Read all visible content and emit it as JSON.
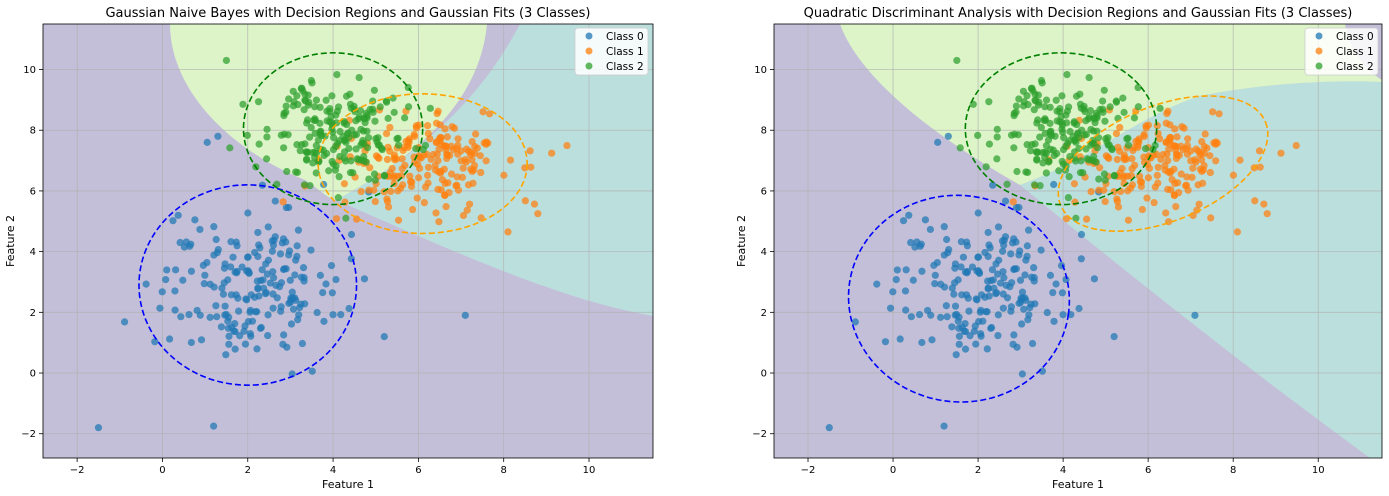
{
  "colors": {
    "class0": "#1f77b4",
    "class1": "#ff7f0e",
    "class2": "#2ca02c",
    "region0": "#c3bfd8",
    "region1": "#bbdfdd",
    "region2": "#dcf4c8",
    "ellipse0": "#0000ff",
    "ellipse1": "#ffa500",
    "ellipse2": "#008000",
    "grid": "#b0b0b0"
  },
  "chart_data": [
    {
      "type": "scatter",
      "title": "Gaussian Naive Bayes with Decision Regions and Gaussian Fits (3 Classes)",
      "xlabel": "Feature 1",
      "ylabel": "Feature 2",
      "xlim": [
        -2.8,
        11.5
      ],
      "ylim": [
        -2.8,
        11.5
      ],
      "xticks": [
        -2,
        0,
        2,
        4,
        6,
        8,
        10
      ],
      "yticks": [
        -2,
        0,
        2,
        4,
        6,
        8,
        10
      ],
      "grid": true,
      "legend_position": "upper-right",
      "legend": [
        "Class 0",
        "Class 1",
        "Class 2"
      ],
      "series": [
        {
          "name": "Class 0",
          "center": [
            2.0,
            2.9
          ],
          "spread": [
            1.05,
            1.2
          ],
          "corr": 0.05,
          "outliers": [
            [
              -1.5,
              -1.8
            ],
            [
              1.2,
              -1.75
            ],
            [
              7.1,
              1.9
            ],
            [
              1.05,
              7.6
            ],
            [
              1.3,
              7.8
            ],
            [
              5.2,
              1.2
            ]
          ]
        },
        {
          "name": "Class 1",
          "center": [
            6.1,
            6.9
          ],
          "spread": [
            1.05,
            0.8
          ],
          "corr": 0.05,
          "outliers": [
            [
              8.8,
              5.25
            ],
            [
              8.1,
              4.65
            ]
          ]
        },
        {
          "name": "Class 2",
          "center": [
            4.0,
            8.05
          ],
          "spread": [
            0.85,
            0.85
          ],
          "corr": 0.0,
          "outliers": [
            [
              1.5,
              10.3
            ],
            [
              4.3,
              5.1
            ]
          ]
        }
      ],
      "gaussian_fits": [
        {
          "class": "Class 0",
          "center": [
            2.0,
            2.9
          ],
          "radii": [
            2.55,
            3.3
          ],
          "angle_deg": 0
        },
        {
          "class": "Class 1",
          "center": [
            6.1,
            6.9
          ],
          "radii": [
            2.45,
            2.3
          ],
          "angle_deg": 0
        },
        {
          "class": "Class 2",
          "center": [
            4.0,
            8.05
          ],
          "radii": [
            2.1,
            2.5
          ],
          "angle_deg": 0
        }
      ]
    },
    {
      "type": "scatter",
      "title": "Quadratic Discriminant Analysis with Decision Regions and Gaussian Fits (3 Classes)",
      "xlabel": "Feature 1",
      "ylabel": "Feature 2",
      "xlim": [
        -2.8,
        11.5
      ],
      "ylim": [
        -2.8,
        11.5
      ],
      "xticks": [
        -2,
        0,
        2,
        4,
        6,
        8,
        10
      ],
      "yticks": [
        -2,
        0,
        2,
        4,
        6,
        8,
        10
      ],
      "grid": true,
      "legend_position": "upper-right",
      "legend": [
        "Class 0",
        "Class 1",
        "Class 2"
      ],
      "series": [
        {
          "name": "Class 0",
          "center": [
            2.0,
            2.9
          ],
          "spread": [
            1.05,
            1.2
          ],
          "corr": 0.05,
          "outliers": [
            [
              -1.5,
              -1.8
            ],
            [
              1.2,
              -1.75
            ],
            [
              7.1,
              1.9
            ],
            [
              1.05,
              7.6
            ],
            [
              1.3,
              7.8
            ],
            [
              5.2,
              1.2
            ]
          ]
        },
        {
          "name": "Class 1",
          "center": [
            6.1,
            6.9
          ],
          "spread": [
            1.05,
            0.8
          ],
          "corr": 0.05,
          "outliers": [
            [
              8.8,
              5.25
            ],
            [
              8.1,
              4.65
            ]
          ]
        },
        {
          "name": "Class 2",
          "center": [
            4.0,
            8.05
          ],
          "spread": [
            0.85,
            0.85
          ],
          "corr": 0.0,
          "outliers": [
            [
              1.5,
              10.3
            ],
            [
              4.3,
              5.1
            ]
          ]
        }
      ],
      "gaussian_fits": [
        {
          "class": "Class 0",
          "center": [
            1.55,
            2.45
          ],
          "radii": [
            2.6,
            3.4
          ],
          "angle_deg": 8
        },
        {
          "class": "Class 1",
          "center": [
            6.35,
            6.9
          ],
          "radii": [
            2.6,
            1.9
          ],
          "angle_deg": -22
        },
        {
          "class": "Class 2",
          "center": [
            3.95,
            8.05
          ],
          "radii": [
            2.25,
            2.5
          ],
          "angle_deg": 0
        }
      ]
    }
  ]
}
